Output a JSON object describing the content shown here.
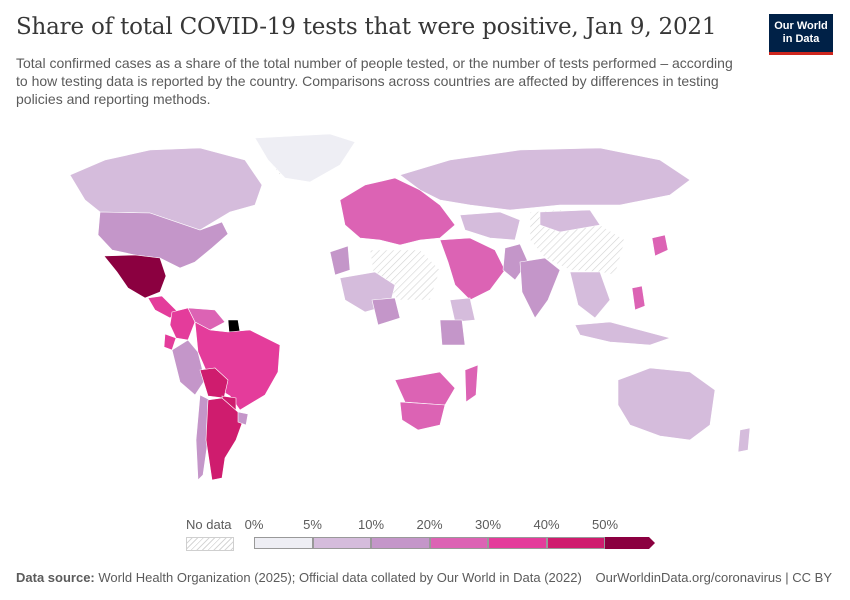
{
  "header": {
    "title": "Share of total COVID-19 tests that were positive, Jan 9, 2021",
    "subtitle": "Total confirmed cases as a share of the total number of people tested, or the number of tests performed – according to how testing data is reported by the country. Comparisons across countries are affected by differences in testing policies and reporting methods."
  },
  "logo": {
    "line1": "Our World",
    "line2": "in Data"
  },
  "legend": {
    "nodata_label": "No data",
    "ticks": [
      "0%",
      "5%",
      "10%",
      "20%",
      "30%",
      "40%",
      "50%"
    ],
    "colors": [
      "#eeeef4",
      "#d5bcdc",
      "#c496c9",
      "#dc63b4",
      "#e43c9b",
      "#cf1c6e",
      "#8b0040"
    ]
  },
  "footer": {
    "source_label": "Data source:",
    "source_text": "World Health Organization (2025); Official data collated by Our World in Data (2022)",
    "right": "OurWorldinData.org/coronavirus | CC BY"
  },
  "chart_data": {
    "type": "choropleth",
    "title": "Share of total COVID-19 tests that were positive, Jan 9, 2021",
    "unit": "%",
    "bins": [
      0,
      5,
      10,
      20,
      30,
      40,
      50
    ],
    "regions": [
      {
        "name": "Canada",
        "bin": 1
      },
      {
        "name": "United States",
        "bin": 2
      },
      {
        "name": "Mexico",
        "bin": 6
      },
      {
        "name": "Central America",
        "bin": 4
      },
      {
        "name": "Colombia",
        "bin": 4
      },
      {
        "name": "Venezuela",
        "bin": 3
      },
      {
        "name": "Suriname",
        "bin": 7
      },
      {
        "name": "Ecuador",
        "bin": 4
      },
      {
        "name": "Peru",
        "bin": 2
      },
      {
        "name": "Brazil",
        "bin": 4
      },
      {
        "name": "Bolivia",
        "bin": 5
      },
      {
        "name": "Paraguay",
        "bin": 5
      },
      {
        "name": "Chile",
        "bin": 2
      },
      {
        "name": "Argentina",
        "bin": 5
      },
      {
        "name": "Uruguay",
        "bin": 2
      },
      {
        "name": "Greenland",
        "bin": 0
      },
      {
        "name": "Europe",
        "bin": 3
      },
      {
        "name": "Russia",
        "bin": 1
      },
      {
        "name": "Morocco",
        "bin": 2
      },
      {
        "name": "Middle East",
        "bin": 3
      },
      {
        "name": "India",
        "bin": 2
      },
      {
        "name": "Pakistan",
        "bin": 2
      },
      {
        "name": "Kazakhstan",
        "bin": 1
      },
      {
        "name": "Mongolia",
        "bin": 1
      },
      {
        "name": "Southeast Asia",
        "bin": 1
      },
      {
        "name": "Japan",
        "bin": 3
      },
      {
        "name": "Philippines",
        "bin": 3
      },
      {
        "name": "Indonesia",
        "bin": 1
      },
      {
        "name": "Australia",
        "bin": 1
      },
      {
        "name": "New Zealand",
        "bin": 1
      },
      {
        "name": "Madagascar",
        "bin": 3
      },
      {
        "name": "South Africa",
        "bin": 3
      },
      {
        "name": "Southern Africa",
        "bin": 3
      },
      {
        "name": "Ethiopia",
        "bin": 1
      },
      {
        "name": "Kenya",
        "bin": 2
      },
      {
        "name": "Nigeria",
        "bin": 2
      },
      {
        "name": "West Africa",
        "bin": 1
      }
    ]
  }
}
